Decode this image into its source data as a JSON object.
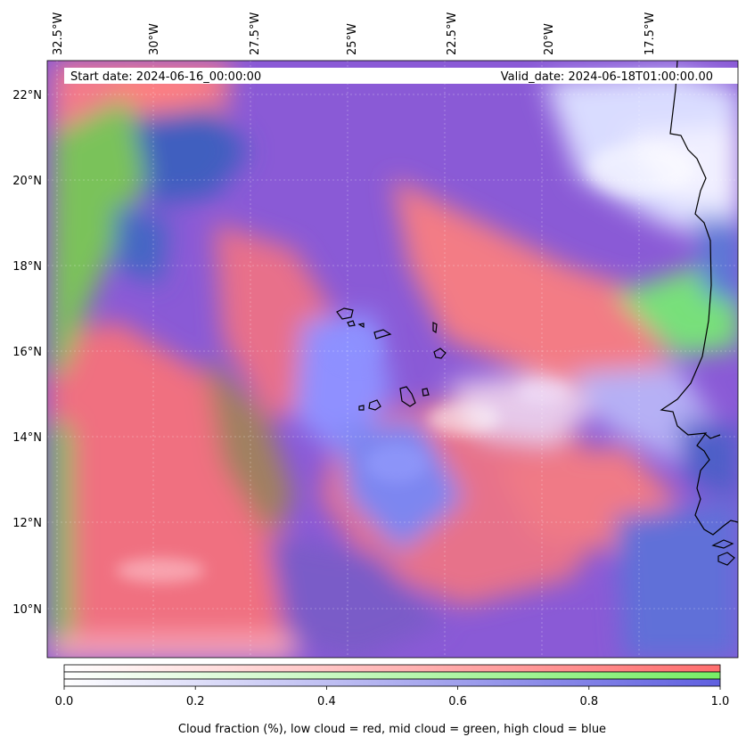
{
  "map": {
    "start_date_label": "Start date: 2024-06-16_00:00:00",
    "valid_date_label": "Valid_date: 2024-06-18T01:00:00.00",
    "longitude_labels": [
      "32.5°W",
      "30°W",
      "27.5°W",
      "25°W",
      "22.5°W",
      "20°W",
      "17.5°W"
    ],
    "latitude_labels": [
      "22°N",
      "20°N",
      "18°N",
      "16°N",
      "14°N",
      "12°N",
      "10°N"
    ],
    "gridlines": true,
    "coastline_color": "#000000",
    "regions": [
      "Cape Verde Islands",
      "West African coast"
    ]
  },
  "colorbar": {
    "ticks": [
      "0.0",
      "0.2",
      "0.4",
      "0.6",
      "0.8",
      "1.0"
    ],
    "tick_values": [
      0.0,
      0.2,
      0.4,
      0.6,
      0.8,
      1.0
    ],
    "range": [
      0.0,
      1.0
    ],
    "label": "Cloud fraction (%), low cloud = red, mid cloud = green, high cloud = blue",
    "bands": [
      {
        "name": "low cloud",
        "color": "#ff6e6e"
      },
      {
        "name": "mid cloud",
        "color": "#77ee66"
      },
      {
        "name": "high cloud",
        "color": "#6060e0"
      }
    ]
  }
}
